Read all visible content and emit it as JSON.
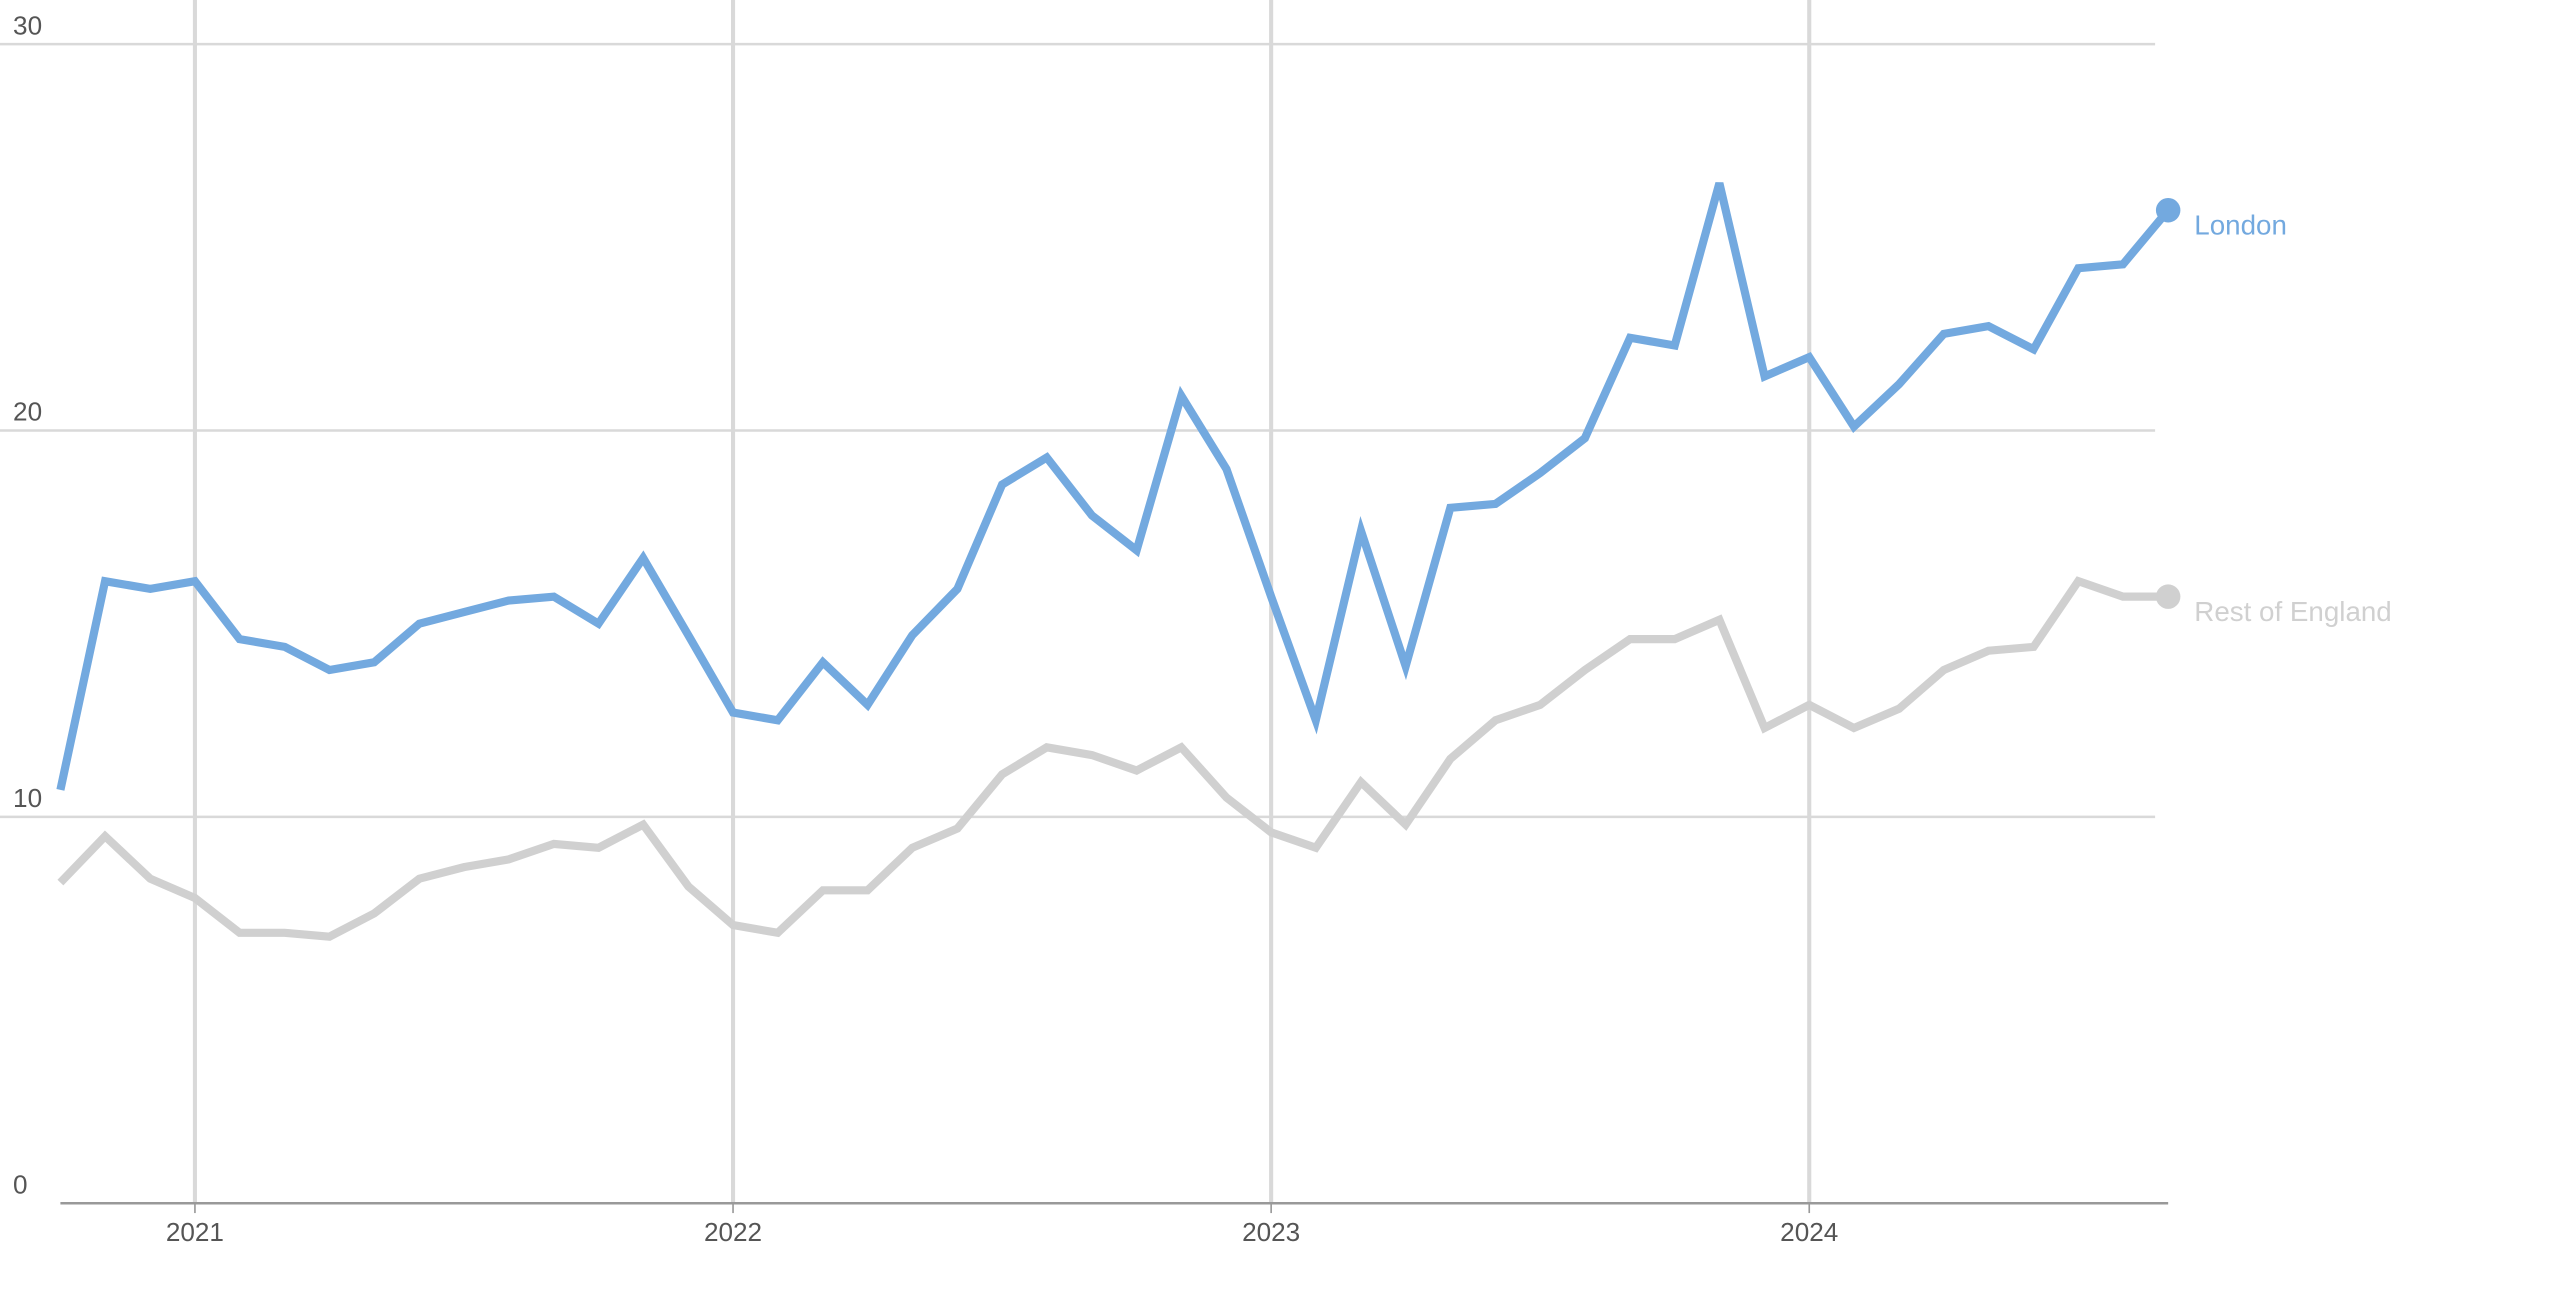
{
  "chart_data": {
    "type": "line",
    "x": [
      2020.75,
      2020.833,
      2020.917,
      2021,
      2021.083,
      2021.167,
      2021.25,
      2021.333,
      2021.417,
      2021.5,
      2021.583,
      2021.667,
      2021.75,
      2021.833,
      2021.917,
      2022,
      2022.083,
      2022.167,
      2022.25,
      2022.333,
      2022.417,
      2022.5,
      2022.583,
      2022.667,
      2022.75,
      2022.833,
      2022.917,
      2023,
      2023.083,
      2023.167,
      2023.25,
      2023.333,
      2023.417,
      2023.5,
      2023.583,
      2023.667,
      2023.75,
      2023.833,
      2023.917,
      2024,
      2024.083,
      2024.167,
      2024.25,
      2024.333,
      2024.417,
      2024.5,
      2024.583,
      2024.667
    ],
    "series": [
      {
        "name": "London",
        "color": "#73a9df",
        "values": [
          10.7,
          16.1,
          15.9,
          16.1,
          14.6,
          14.4,
          13.8,
          14.0,
          15.0,
          15.3,
          15.6,
          15.7,
          15.0,
          16.7,
          14.7,
          12.7,
          12.5,
          14.0,
          12.9,
          14.7,
          15.9,
          18.6,
          19.3,
          17.8,
          16.9,
          20.9,
          19.0,
          15.7,
          12.5,
          17.4,
          13.9,
          18.0,
          18.1,
          18.9,
          19.8,
          22.4,
          22.2,
          26.4,
          21.4,
          21.9,
          20.1,
          21.2,
          22.5,
          22.7,
          22.1,
          24.2,
          24.3,
          25.7
        ]
      },
      {
        "name": "Rest of England",
        "color": "#d0d0d0",
        "values": [
          8.3,
          9.5,
          8.4,
          7.9,
          7.0,
          7.0,
          6.9,
          7.5,
          8.4,
          8.7,
          8.9,
          9.3,
          9.2,
          9.8,
          8.2,
          7.2,
          7.0,
          8.1,
          8.1,
          9.2,
          9.7,
          11.1,
          11.8,
          11.6,
          11.2,
          11.8,
          10.5,
          9.6,
          9.2,
          10.9,
          9.8,
          11.5,
          12.5,
          12.9,
          13.8,
          14.6,
          14.6,
          15.1,
          12.3,
          12.9,
          12.3,
          12.8,
          13.8,
          14.3,
          14.4,
          16.1,
          15.7,
          15.7
        ]
      }
    ],
    "xlim": [
      2020.75,
      2024.667
    ],
    "xticks": [
      2021,
      2022,
      2023,
      2024
    ],
    "ylim": [
      0,
      30
    ],
    "yticks": [
      0,
      10,
      20,
      30
    ],
    "grid": true
  }
}
